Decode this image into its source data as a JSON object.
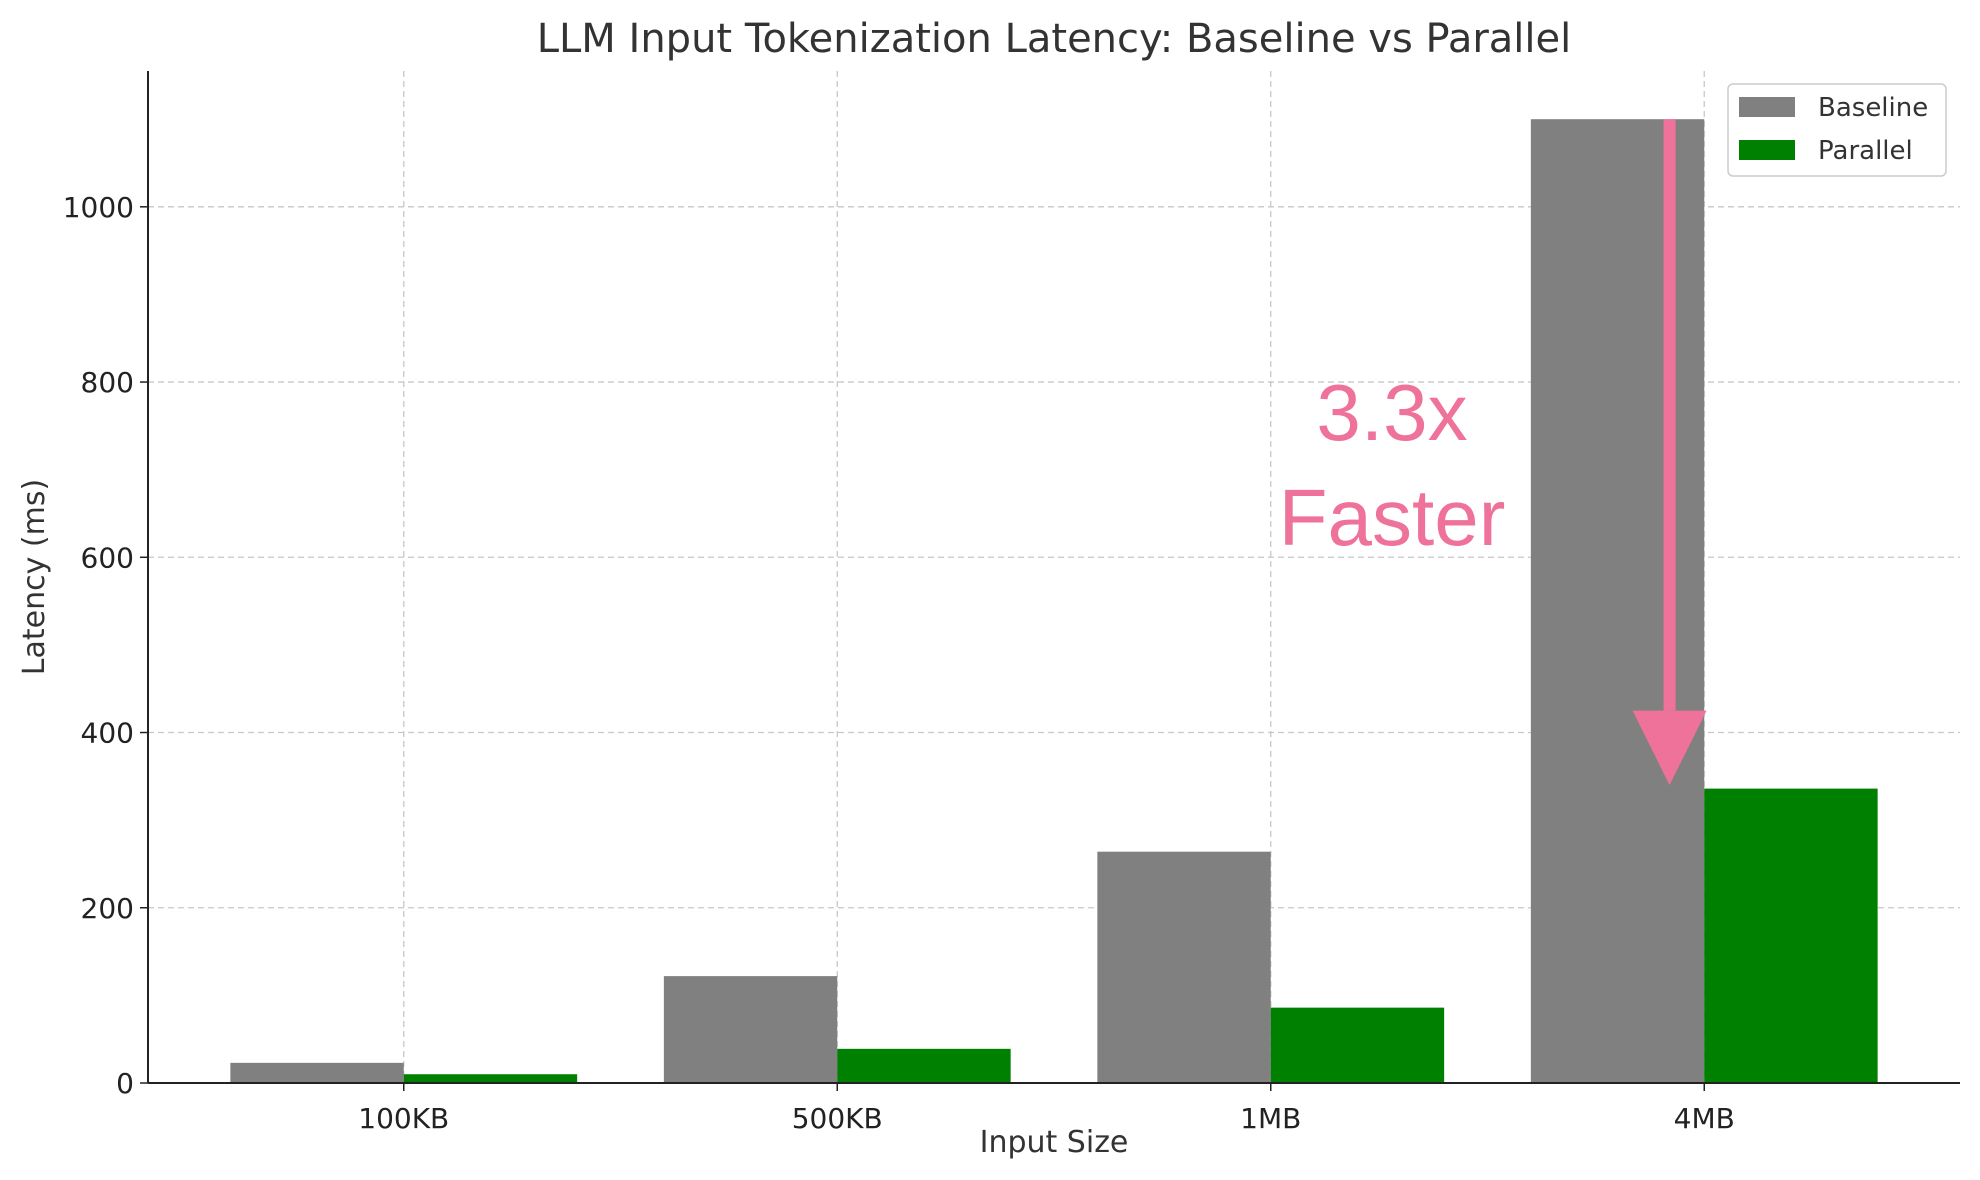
{
  "chart_data": {
    "type": "bar",
    "title": "LLM Input Tokenization Latency: Baseline vs Parallel",
    "xlabel": "Input Size",
    "ylabel": "Latency (ms)",
    "categories": [
      "100KB",
      "500KB",
      "1MB",
      "4MB"
    ],
    "series": [
      {
        "name": "Baseline",
        "color": "#808080",
        "values": [
          23,
          122,
          264,
          1100
        ]
      },
      {
        "name": "Parallel",
        "color": "#008000",
        "values": [
          10,
          39,
          86,
          336
        ]
      }
    ],
    "ylim": [
      0,
      1155
    ],
    "yticks": [
      0,
      200,
      400,
      600,
      800,
      1000
    ],
    "grid": true,
    "legend_position": "top-right",
    "annotation": {
      "line1": "3.3x",
      "line2": "Faster",
      "color": "#EE7299",
      "arrow_from": 1100,
      "arrow_to": 340
    }
  }
}
